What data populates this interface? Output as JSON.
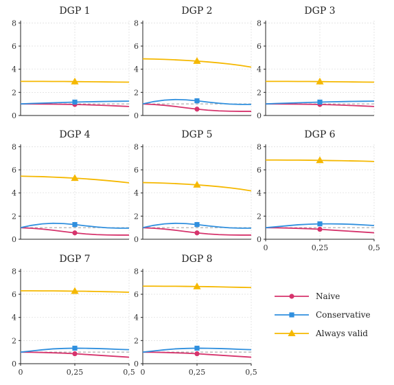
{
  "chart_data": {
    "type": "line",
    "x_ticks": [
      0,
      0.25,
      0.5
    ],
    "x_tick_labels": [
      "0",
      "0,25",
      "0,5"
    ],
    "y_ticks": [
      0,
      2,
      4,
      6,
      8
    ],
    "y_tick_labels": [
      "0",
      "2",
      "4",
      "6",
      "8"
    ],
    "xlim": [
      0,
      0.5
    ],
    "ylim": [
      0,
      8.2
    ],
    "reference_line": 1,
    "marker_x": 0.25,
    "x": [
      0,
      0.05,
      0.1,
      0.15,
      0.2,
      0.25,
      0.3,
      0.35,
      0.4,
      0.45,
      0.5
    ],
    "legend": {
      "placement": "bottom-right",
      "entries": [
        "Naive",
        "Conservative",
        "Always valid"
      ]
    },
    "series_styles": [
      {
        "name": "Naive",
        "color": "#d6336c",
        "marker": "circle"
      },
      {
        "name": "Conservative",
        "color": "#2f8fde",
        "marker": "square"
      },
      {
        "name": "Always valid",
        "color": "#f5b800",
        "marker": "triangle"
      }
    ],
    "panels": [
      {
        "title": "DGP 1",
        "series": [
          [
            1.0,
            1.0,
            0.99,
            0.98,
            0.97,
            0.95,
            0.93,
            0.9,
            0.86,
            0.82,
            0.78
          ],
          [
            1.0,
            1.04,
            1.07,
            1.1,
            1.13,
            1.16,
            1.18,
            1.2,
            1.22,
            1.23,
            1.24
          ],
          [
            2.95,
            2.95,
            2.95,
            2.94,
            2.94,
            2.93,
            2.92,
            2.91,
            2.9,
            2.89,
            2.88
          ]
        ]
      },
      {
        "title": "DGP 2",
        "series": [
          [
            1.0,
            0.95,
            0.88,
            0.78,
            0.66,
            0.55,
            0.46,
            0.4,
            0.37,
            0.36,
            0.36
          ],
          [
            1.0,
            1.2,
            1.33,
            1.38,
            1.35,
            1.27,
            1.16,
            1.06,
            0.99,
            0.96,
            0.96
          ],
          [
            4.9,
            4.88,
            4.85,
            4.81,
            4.76,
            4.7,
            4.63,
            4.55,
            4.45,
            4.33,
            4.18
          ]
        ]
      },
      {
        "title": "DGP 3",
        "series": [
          [
            1.0,
            1.0,
            0.99,
            0.98,
            0.97,
            0.95,
            0.93,
            0.9,
            0.86,
            0.82,
            0.78
          ],
          [
            1.0,
            1.04,
            1.07,
            1.1,
            1.13,
            1.16,
            1.18,
            1.2,
            1.22,
            1.23,
            1.24
          ],
          [
            2.95,
            2.95,
            2.95,
            2.94,
            2.94,
            2.93,
            2.92,
            2.91,
            2.9,
            2.89,
            2.88
          ]
        ]
      },
      {
        "title": "DGP 4",
        "series": [
          [
            1.0,
            0.95,
            0.88,
            0.78,
            0.66,
            0.55,
            0.46,
            0.4,
            0.37,
            0.36,
            0.36
          ],
          [
            1.0,
            1.2,
            1.33,
            1.38,
            1.35,
            1.27,
            1.16,
            1.06,
            0.99,
            0.96,
            0.96
          ],
          [
            5.45,
            5.43,
            5.41,
            5.37,
            5.33,
            5.28,
            5.22,
            5.15,
            5.07,
            4.98,
            4.88
          ]
        ]
      },
      {
        "title": "DGP 5",
        "series": [
          [
            1.0,
            0.95,
            0.88,
            0.78,
            0.66,
            0.55,
            0.46,
            0.4,
            0.37,
            0.36,
            0.36
          ],
          [
            1.0,
            1.2,
            1.33,
            1.38,
            1.35,
            1.27,
            1.16,
            1.06,
            0.99,
            0.96,
            0.96
          ],
          [
            4.9,
            4.88,
            4.85,
            4.81,
            4.76,
            4.7,
            4.63,
            4.55,
            4.45,
            4.33,
            4.18
          ]
        ]
      },
      {
        "title": "DGP 6",
        "series": [
          [
            1.0,
            0.99,
            0.97,
            0.94,
            0.91,
            0.86,
            0.8,
            0.74,
            0.68,
            0.62,
            0.56
          ],
          [
            1.0,
            1.08,
            1.17,
            1.25,
            1.3,
            1.33,
            1.33,
            1.32,
            1.29,
            1.24,
            1.19
          ],
          [
            6.85,
            6.85,
            6.84,
            6.84,
            6.83,
            6.82,
            6.8,
            6.79,
            6.77,
            6.75,
            6.72
          ]
        ]
      },
      {
        "title": "DGP 7",
        "series": [
          [
            1.0,
            0.99,
            0.97,
            0.94,
            0.91,
            0.86,
            0.8,
            0.74,
            0.68,
            0.62,
            0.56
          ],
          [
            1.0,
            1.1,
            1.2,
            1.28,
            1.32,
            1.34,
            1.33,
            1.31,
            1.28,
            1.24,
            1.21
          ],
          [
            6.3,
            6.3,
            6.29,
            6.29,
            6.28,
            6.27,
            6.26,
            6.24,
            6.22,
            6.2,
            6.17
          ]
        ]
      },
      {
        "title": "DGP 8",
        "series": [
          [
            1.0,
            0.99,
            0.97,
            0.94,
            0.91,
            0.86,
            0.8,
            0.74,
            0.68,
            0.62,
            0.56
          ],
          [
            1.0,
            1.1,
            1.2,
            1.28,
            1.32,
            1.34,
            1.33,
            1.31,
            1.28,
            1.24,
            1.21
          ],
          [
            6.7,
            6.7,
            6.69,
            6.69,
            6.68,
            6.67,
            6.66,
            6.64,
            6.62,
            6.6,
            6.58
          ]
        ]
      }
    ]
  }
}
